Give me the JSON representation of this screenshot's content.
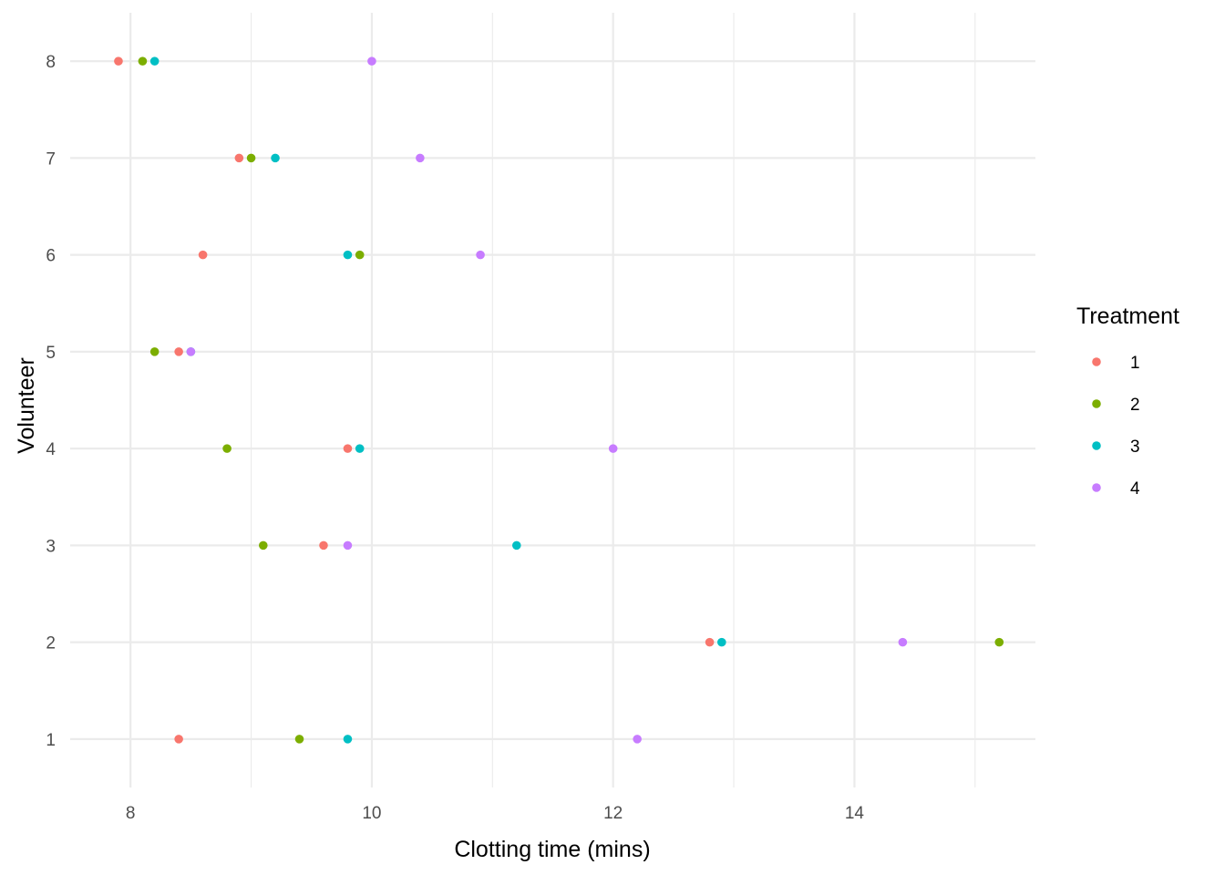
{
  "chart_data": {
    "type": "scatter",
    "title": "",
    "xlabel": "Clotting time (mins)",
    "ylabel": "Volunteer",
    "xlim": [
      7.5,
      15.5
    ],
    "ylim": [
      0.5,
      8.5
    ],
    "x_ticks": [
      8,
      10,
      12,
      14
    ],
    "y_ticks": [
      1,
      2,
      3,
      4,
      5,
      6,
      7,
      8
    ],
    "grid": true,
    "legend": {
      "title": "Treatment",
      "position": "right"
    },
    "series": [
      {
        "name": "1",
        "color": "#F8766D",
        "points": [
          {
            "x": 8.4,
            "y": 1
          },
          {
            "x": 12.8,
            "y": 2
          },
          {
            "x": 9.6,
            "y": 3
          },
          {
            "x": 9.8,
            "y": 4
          },
          {
            "x": 8.4,
            "y": 5
          },
          {
            "x": 8.6,
            "y": 6
          },
          {
            "x": 8.9,
            "y": 7
          },
          {
            "x": 7.9,
            "y": 8
          }
        ]
      },
      {
        "name": "2",
        "color": "#7CAE00",
        "points": [
          {
            "x": 9.4,
            "y": 1
          },
          {
            "x": 15.2,
            "y": 2
          },
          {
            "x": 9.1,
            "y": 3
          },
          {
            "x": 8.8,
            "y": 4
          },
          {
            "x": 8.2,
            "y": 5
          },
          {
            "x": 9.9,
            "y": 6
          },
          {
            "x": 9.0,
            "y": 7
          },
          {
            "x": 8.1,
            "y": 8
          }
        ]
      },
      {
        "name": "3",
        "color": "#00BFC4",
        "points": [
          {
            "x": 9.8,
            "y": 1
          },
          {
            "x": 12.9,
            "y": 2
          },
          {
            "x": 11.2,
            "y": 3
          },
          {
            "x": 9.9,
            "y": 4
          },
          {
            "x": 8.5,
            "y": 5
          },
          {
            "x": 9.8,
            "y": 6
          },
          {
            "x": 9.2,
            "y": 7
          },
          {
            "x": 8.2,
            "y": 8
          }
        ]
      },
      {
        "name": "4",
        "color": "#C77CFF",
        "points": [
          {
            "x": 12.2,
            "y": 1
          },
          {
            "x": 14.4,
            "y": 2
          },
          {
            "x": 9.8,
            "y": 3
          },
          {
            "x": 12.0,
            "y": 4
          },
          {
            "x": 8.5,
            "y": 5
          },
          {
            "x": 10.9,
            "y": 6
          },
          {
            "x": 10.4,
            "y": 7
          },
          {
            "x": 10.0,
            "y": 8
          }
        ]
      }
    ]
  }
}
